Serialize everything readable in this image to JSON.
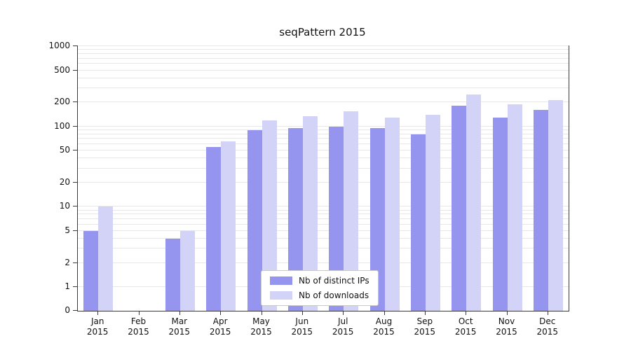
{
  "title": "seqPattern 2015",
  "y_axis": {
    "ticks": [
      0,
      1,
      2,
      5,
      10,
      20,
      50,
      100,
      200,
      500,
      1000
    ]
  },
  "legend": {
    "items": [
      {
        "label": "Nb of distinct IPs",
        "color": "#9595f0"
      },
      {
        "label": "Nb of downloads",
        "color": "#d3d3f8"
      }
    ]
  },
  "chart_data": {
    "type": "bar",
    "title": "seqPattern 2015",
    "yscale": "symlog",
    "ylim": [
      0,
      1000
    ],
    "grid": "on",
    "legend_position": "lower center inside",
    "categories": [
      "Jan 2015",
      "Feb 2015",
      "Mar 2015",
      "Apr 2015",
      "May 2015",
      "Jun 2015",
      "Jul 2015",
      "Aug 2015",
      "Sep 2015",
      "Oct 2015",
      "Nov 2015",
      "Dec 2015"
    ],
    "series": [
      {
        "name": "Nb of distinct IPs",
        "color": "#9595f0",
        "values": [
          5,
          0,
          4,
          55,
          90,
          95,
          100,
          95,
          80,
          180,
          130,
          160
        ]
      },
      {
        "name": "Nb of downloads",
        "color": "#d3d3f8",
        "values": [
          10,
          0,
          5,
          65,
          120,
          135,
          155,
          130,
          140,
          250,
          190,
          215
        ]
      }
    ]
  }
}
